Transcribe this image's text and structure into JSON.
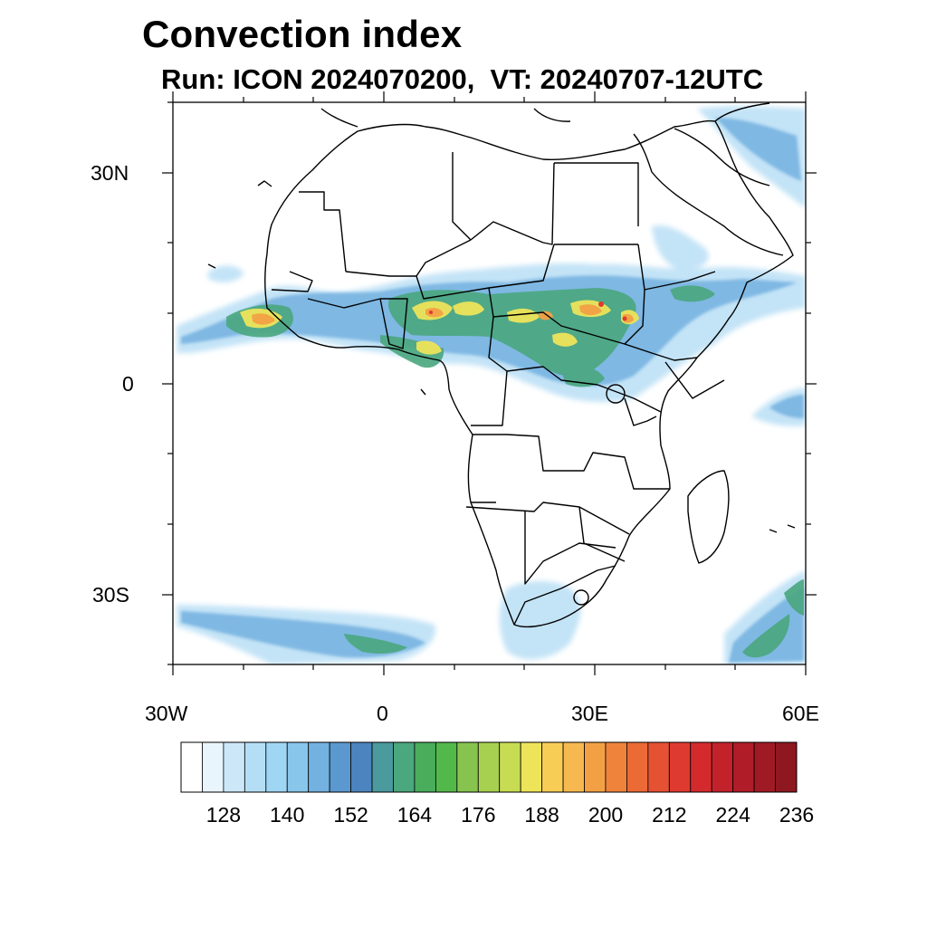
{
  "title": "Convection index",
  "subtitle": "Run: ICON 2024070200,  VT: 20240707-12UTC",
  "axes": {
    "lat_labels": [
      "30N",
      "0",
      "30S"
    ],
    "lon_labels": [
      "30W",
      "0",
      "30E",
      "60E"
    ]
  },
  "colorbar": {
    "colors": [
      "#ffffff",
      "#e9f5fd",
      "#cce8f8",
      "#b4def6",
      "#9fd6f4",
      "#88c6ea",
      "#73b1e0",
      "#5b98cf",
      "#4b84be",
      "#4a9a9e",
      "#4aa77e",
      "#49ad5c",
      "#52b84a",
      "#86c44f",
      "#a8d050",
      "#c7dc52",
      "#eee45a",
      "#f8cd55",
      "#f6b84f",
      "#f3a045",
      "#ef833c",
      "#eb6a36",
      "#e55133",
      "#df3a30",
      "#d52a2d",
      "#c3222a",
      "#b01c27",
      "#a01a25",
      "#8e1720"
    ],
    "labels": [
      "128",
      "140",
      "152",
      "164",
      "176",
      "188",
      "200",
      "212",
      "224",
      "236"
    ]
  },
  "map": {
    "background": "#ffffff",
    "coastline_color": "#000000"
  }
}
